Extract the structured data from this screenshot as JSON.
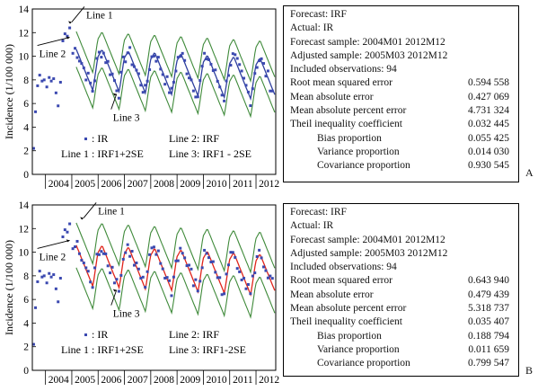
{
  "panels": [
    {
      "letter": "A",
      "chart_data": {
        "type": "line",
        "ylabel": "Incidence (1/100 000)",
        "xlabel": "",
        "ylim": [
          0,
          14
        ],
        "yticks": [
          0,
          2,
          4,
          6,
          8,
          10,
          12,
          14
        ],
        "xlim": [
          2003.5,
          2012.75
        ],
        "year_labels": [
          "2004",
          "2005",
          "2006",
          "2007",
          "2008",
          "2009",
          "2010",
          "2011",
          "2012"
        ],
        "series": [
          {
            "name": "IR",
            "style": "points",
            "color": "#3b49b0"
          },
          {
            "name": "IRF",
            "style": "line",
            "color": "#2f3f9e"
          },
          {
            "name": "IRF+2SE",
            "style": "line",
            "color": "#3f8a3a"
          },
          {
            "name": "IRF1 - 2SE",
            "style": "line",
            "color": "#3f8a3a"
          }
        ],
        "annotations": [
          {
            "text": "Line 1",
            "x": 2005.0,
            "y": 12.9
          },
          {
            "text": "Line 2",
            "x": 2004.92,
            "y": 11.6
          },
          {
            "text": "Line 3",
            "x": 2006.7,
            "y": 6.8
          }
        ],
        "legend": {
          "ir": ": IR",
          "line2": "Line 2: IRF",
          "line1": "Line 1 : IRF1+2SE",
          "line3": "Line 3: IRF1 - 2SE"
        }
      },
      "stats": {
        "header": [
          "Forecast: IRF",
          "Actual: IR",
          "Forecast sample: 2004M01 2012M12",
          "Adjusted sample: 2005M03 2012M12",
          "Included observations: 94"
        ],
        "rows": [
          {
            "label": "Root mean squared error",
            "value": "0.594 558",
            "indent": false
          },
          {
            "label": "Mean absolute error",
            "value": "0.427 069",
            "indent": false
          },
          {
            "label": "Mean absolute percent error",
            "value": "4.731 324",
            "indent": false
          },
          {
            "label": "Theil inequality coefficient",
            "value": "0.032 445",
            "indent": false
          },
          {
            "label": "Bias proportion",
            "value": "0.055 425",
            "indent": true
          },
          {
            "label": "Variance proportion",
            "value": "0.014 030",
            "indent": true
          },
          {
            "label": "Covariance proportion",
            "value": "0.930 545",
            "indent": true
          }
        ]
      }
    },
    {
      "letter": "B",
      "chart_data": {
        "type": "line",
        "ylabel": "Incidence (1/100 000)",
        "xlabel": "",
        "ylim": [
          0,
          14
        ],
        "yticks": [
          0,
          2,
          4,
          6,
          8,
          10,
          12,
          14
        ],
        "xlim": [
          2003.5,
          2012.75
        ],
        "year_labels": [
          "2004",
          "2005",
          "2006",
          "2007",
          "2008",
          "2009",
          "2010",
          "2011",
          "2012"
        ],
        "series": [
          {
            "name": "IR",
            "style": "points",
            "color": "#3b49b0"
          },
          {
            "name": "IRF",
            "style": "line",
            "color": "#e0241b"
          },
          {
            "name": "IRF+2SE",
            "style": "line",
            "color": "#3f8a3a"
          },
          {
            "name": "IRF1-2SE",
            "style": "line",
            "color": "#3f8a3a"
          }
        ],
        "annotations": [
          {
            "text": "Line 1",
            "x": 2005.45,
            "y": 12.9
          },
          {
            "text": "Line 2",
            "x": 2004.92,
            "y": 11.0
          },
          {
            "text": "Line 3",
            "x": 2006.7,
            "y": 6.8
          }
        ],
        "legend": {
          "ir": ": IR",
          "line2": "Line 2: IRF",
          "line1": "Line 1 : IRF1+2SE",
          "line3": "Line 3: IRF1-2SE"
        }
      },
      "stats": {
        "header": [
          "Forecast: IRF",
          "Actual: IR",
          "Forecast sample: 2004M01 2012M12",
          "Adjusted sample: 2005M03 2012M12",
          "Included observations: 94"
        ],
        "rows": [
          {
            "label": "Root mean squared error",
            "value": "0.643 940",
            "indent": false
          },
          {
            "label": "Mean absolute error",
            "value": "0.479 439",
            "indent": false
          },
          {
            "label": "Mean absolute percent error",
            "value": "5.318 737",
            "indent": false
          },
          {
            "label": "Theil inequality coefficient",
            "value": "0.035 407",
            "indent": false
          },
          {
            "label": "Bias proportion",
            "value": "0.188 794",
            "indent": true
          },
          {
            "label": "Variance proportion",
            "value": "0.011 659",
            "indent": true
          },
          {
            "label": "Covariance proportion",
            "value": "0.799 547",
            "indent": true
          }
        ]
      }
    }
  ]
}
